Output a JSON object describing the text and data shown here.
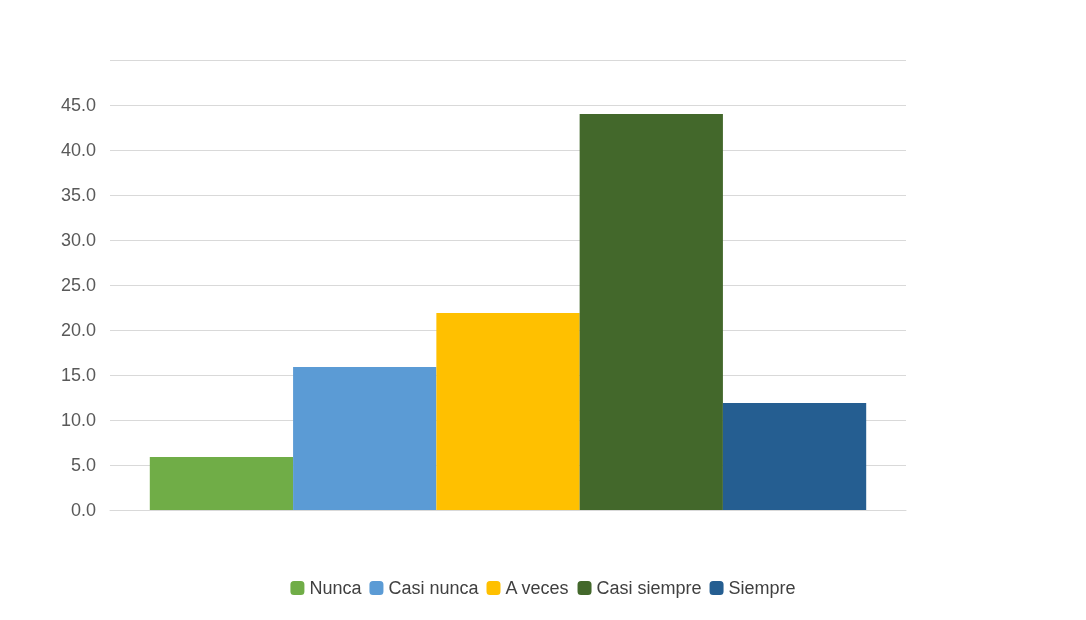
{
  "chart_data": {
    "type": "bar",
    "categories": [
      null
    ],
    "series": [
      {
        "name": "Nunca",
        "color": "#70ad47",
        "values": [
          5.9
        ]
      },
      {
        "name": "Casi nunca",
        "color": "#5b9bd5",
        "values": [
          15.9
        ]
      },
      {
        "name": "A veces",
        "color": "#ffc000",
        "values": [
          21.9
        ]
      },
      {
        "name": "Casi siempre",
        "color": "#43682b",
        "values": [
          44.0
        ]
      },
      {
        "name": "Siempre",
        "color": "#255e91",
        "values": [
          11.9
        ]
      }
    ],
    "ylim": [
      0,
      50
    ],
    "yticks": [
      {
        "value": 0,
        "label": "0.0"
      },
      {
        "value": 5,
        "label": "5.0"
      },
      {
        "value": 10,
        "label": "10.0"
      },
      {
        "value": 15,
        "label": "15.0"
      },
      {
        "value": 20,
        "label": "20.0"
      },
      {
        "value": 25,
        "label": "25.0"
      },
      {
        "value": 30,
        "label": "30.0"
      },
      {
        "value": 35,
        "label": "35.0"
      },
      {
        "value": 40,
        "label": "40.0"
      },
      {
        "value": 45,
        "label": "45.0"
      },
      {
        "value": 50,
        "label": null
      }
    ],
    "grid": "y",
    "legend": "bottom"
  }
}
